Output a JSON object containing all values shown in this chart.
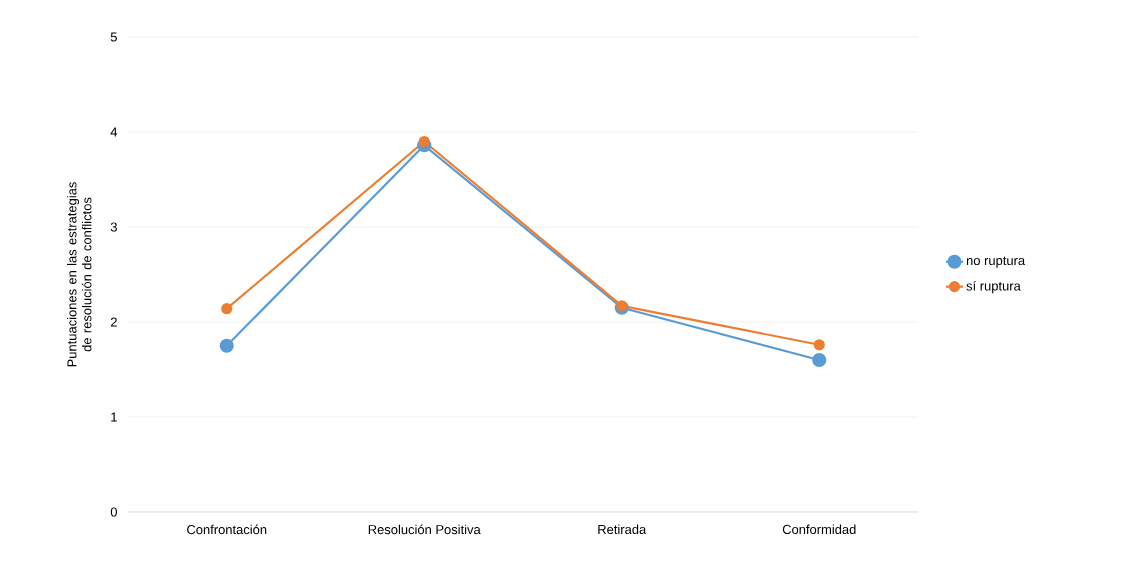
{
  "chart_data": {
    "type": "line",
    "ylabel": "Puntuaciones en las estrategias de resolución de conflictos",
    "categories": [
      "Confrontación",
      "Resolución Positiva",
      "Retirada",
      "Conformidad"
    ],
    "series": [
      {
        "name": "no ruptura",
        "color": "#5b9bd5",
        "values": [
          1.75,
          3.86,
          2.15,
          1.6
        ]
      },
      {
        "name": "sí ruptura",
        "color": "#ed7d31",
        "values": [
          2.14,
          3.9,
          2.17,
          1.76
        ]
      }
    ],
    "ylim": [
      0,
      5
    ],
    "yticks": [
      0,
      1,
      2,
      3,
      4,
      5
    ],
    "grid": "y",
    "legend": "right",
    "marker": "circle",
    "line_style": "solid"
  }
}
